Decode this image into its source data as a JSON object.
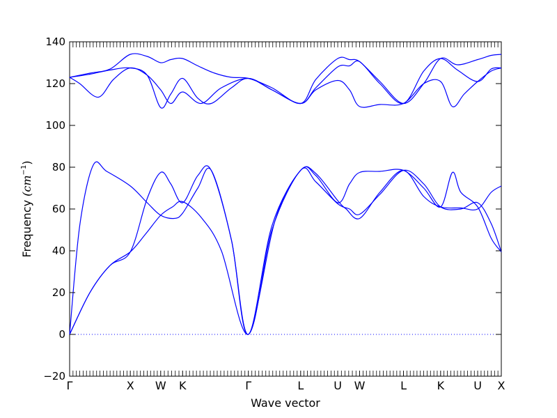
{
  "chart_data": {
    "type": "line",
    "title": "",
    "xlabel": "Wave vector",
    "ylabel_text": "Frequency",
    "ylabel_unit": "(cm",
    "ylabel_unit_sup": "−1",
    "ylabel_unit_close": ")",
    "ylim": [
      -20,
      140
    ],
    "yticks": [
      -20,
      0,
      20,
      40,
      60,
      80,
      100,
      120,
      140
    ],
    "xlim": [
      0,
      12.8
    ],
    "kpoints": [
      {
        "label": "Γ",
        "x": 0.0
      },
      {
        "label": "X",
        "x": 1.8
      },
      {
        "label": "W",
        "x": 2.7
      },
      {
        "label": "K",
        "x": 3.35
      },
      {
        "label": "Γ",
        "x": 5.3
      },
      {
        "label": "L",
        "x": 6.85
      },
      {
        "label": "U",
        "x": 7.95
      },
      {
        "label": "W",
        "x": 8.6
      },
      {
        "label": "L",
        "x": 9.9
      },
      {
        "label": "K",
        "x": 11.0
      },
      {
        "label": "U",
        "x": 12.1
      },
      {
        "label": "X",
        "x": 12.8
      }
    ],
    "zero_line": true,
    "line_color": "#0000ff",
    "series": [
      {
        "x": [
          0,
          0.6,
          1.2,
          1.8,
          2.25,
          2.7,
          3.05,
          3.35,
          3.9,
          4.5,
          5.3,
          6.0,
          6.85,
          7.3,
          7.95,
          8.3,
          8.6,
          9.2,
          9.9,
          10.5,
          11.0,
          11.6,
          12.1,
          12.5,
          12.8
        ],
        "y": [
          0,
          20,
          33,
          39.5,
          48,
          57,
          61,
          63.5,
          56,
          40,
          0,
          50,
          78.5,
          73,
          62.5,
          60,
          57.5,
          67,
          78.5,
          72,
          61,
          60,
          63,
          53,
          39.5
        ]
      },
      {
        "x": [
          0,
          0.3,
          0.7,
          1.1,
          1.8,
          2.3,
          2.7,
          3.1,
          3.35,
          3.8,
          4.2,
          4.8,
          5.3,
          6.1,
          6.85,
          7.3,
          7.95,
          8.2,
          8.6,
          9.2,
          9.9,
          10.5,
          11.0,
          11.6,
          12.1,
          12.5,
          12.8
        ],
        "y": [
          0,
          52,
          81,
          78,
          71,
          63,
          57,
          55.5,
          58,
          70,
          78.5,
          45,
          0,
          55,
          78.5,
          77,
          64,
          60,
          55.5,
          68,
          78.5,
          66,
          61,
          60.5,
          60,
          68,
          71
        ]
      },
      {
        "x": [
          0,
          0.6,
          1.2,
          1.8,
          2.3,
          2.7,
          3.0,
          3.35,
          3.8,
          4.2,
          4.8,
          5.3,
          6.0,
          6.85,
          7.3,
          7.95,
          8.3,
          8.6,
          9.2,
          9.9,
          10.5,
          11.0,
          11.35,
          11.6,
          12.1,
          12.5,
          12.8
        ],
        "y": [
          0,
          20,
          33,
          39.5,
          65,
          77.5,
          72,
          63,
          76,
          78.5,
          45,
          0,
          52,
          78.5,
          76,
          63,
          72,
          77.5,
          78,
          78.5,
          70,
          61,
          77.5,
          68,
          61,
          46,
          39.5
        ]
      },
      {
        "x": [
          0,
          0.3,
          0.85,
          1.3,
          1.8,
          2.3,
          2.7,
          3.0,
          3.35,
          3.9,
          4.5,
          5.3,
          6.0,
          6.85,
          7.3,
          7.95,
          8.3,
          8.6,
          9.2,
          9.9,
          10.5,
          11.0,
          11.35,
          11.7,
          12.1,
          12.5,
          12.8
        ],
        "y": [
          123,
          120,
          113.5,
          122,
          127.5,
          124,
          117,
          110.5,
          116,
          110.5,
          118,
          122.5,
          117,
          110.5,
          117,
          121.5,
          117,
          109,
          110,
          110.5,
          120,
          121,
          109,
          115,
          121,
          126,
          127.5
        ]
      },
      {
        "x": [
          0,
          0.6,
          1.2,
          1.8,
          2.3,
          2.7,
          3.0,
          3.35,
          3.8,
          4.2,
          4.8,
          5.3,
          6.0,
          6.85,
          7.3,
          7.95,
          8.3,
          8.6,
          9.2,
          9.9,
          10.5,
          11.0,
          11.5,
          12.1,
          12.5,
          12.8
        ],
        "y": [
          123,
          124.5,
          126.5,
          127.5,
          124,
          108.5,
          115,
          122.5,
          113,
          110.5,
          118,
          122.5,
          117,
          110.5,
          118,
          128,
          128.5,
          130.5,
          120,
          110.5,
          126,
          132,
          126.5,
          121,
          127,
          127.5
        ]
      },
      {
        "x": [
          0,
          0.6,
          1.2,
          1.8,
          2.3,
          2.7,
          3.0,
          3.35,
          3.8,
          4.3,
          4.8,
          5.3,
          6.0,
          6.85,
          7.3,
          7.95,
          8.3,
          8.6,
          9.2,
          9.9,
          10.5,
          11.0,
          11.5,
          12.1,
          12.5,
          12.8
        ],
        "y": [
          123,
          125,
          127,
          134,
          133,
          130,
          131.5,
          132,
          128.5,
          125,
          123,
          122.5,
          118,
          110.5,
          122,
          132,
          131.5,
          130.5,
          121,
          110.5,
          120,
          132,
          129,
          131.5,
          133.5,
          134
        ]
      }
    ]
  }
}
